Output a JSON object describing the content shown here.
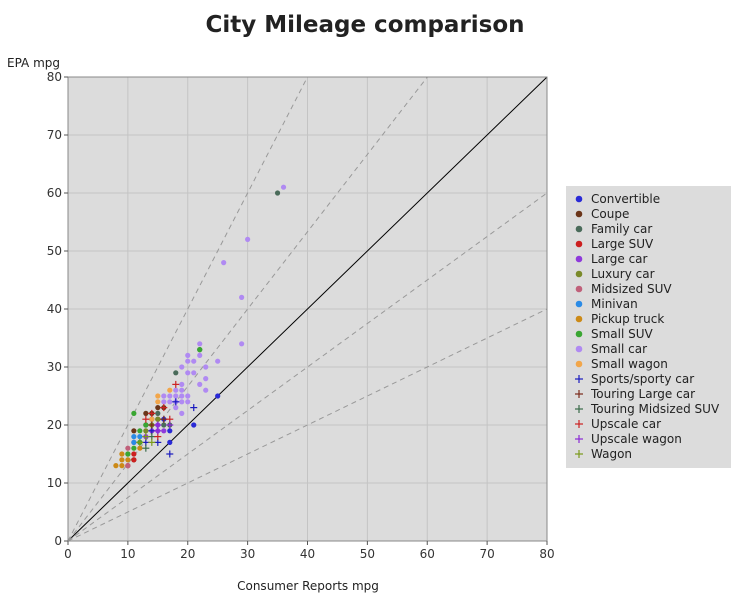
{
  "chart_data": {
    "type": "scatter",
    "title": "City Mileage comparison",
    "xlabel": "Consumer Reports mpg",
    "ylabel": "EPA mpg",
    "xlim": [
      0,
      80
    ],
    "ylim": [
      0,
      80
    ],
    "xticks": [
      0,
      10,
      20,
      30,
      40,
      50,
      60,
      70,
      80
    ],
    "yticks": [
      0,
      10,
      20,
      30,
      40,
      50,
      60,
      70,
      80
    ],
    "grid": true,
    "legend_position": "right",
    "colors": {
      "plot_background": "#dcdcdc",
      "legend_background": "#dcdcdc",
      "grid": "#c4c4c4",
      "identity_line": "#000000",
      "reference_lines": "#999999"
    },
    "reference_lines": [
      {
        "slope": 1,
        "style": "solid"
      },
      {
        "slope": 2,
        "style": "dashed"
      },
      {
        "slope": 1.333,
        "style": "dashed"
      },
      {
        "slope": 0.75,
        "style": "dashed"
      },
      {
        "slope": 0.5,
        "style": "dashed"
      }
    ],
    "series": [
      {
        "name": "Convertible",
        "marker": "circle",
        "color": "#2a2ad6",
        "points": [
          [
            25,
            25
          ],
          [
            21,
            20
          ],
          [
            17,
            17
          ],
          [
            17,
            19
          ],
          [
            16,
            21
          ]
        ]
      },
      {
        "name": "Coupe",
        "marker": "circle",
        "color": "#6b3519",
        "points": [
          [
            11,
            19
          ],
          [
            11,
            14
          ],
          [
            13,
            22
          ],
          [
            14,
            22
          ],
          [
            15,
            21
          ],
          [
            15,
            23
          ],
          [
            16,
            23
          ]
        ]
      },
      {
        "name": "Family car",
        "marker": "circle",
        "color": "#4a6b5a",
        "points": [
          [
            35,
            60
          ],
          [
            18,
            29
          ],
          [
            13,
            20
          ],
          [
            14,
            21
          ],
          [
            15,
            22
          ],
          [
            16,
            20
          ],
          [
            17,
            20
          ],
          [
            22,
            33
          ]
        ]
      },
      {
        "name": "Large SUV",
        "marker": "circle",
        "color": "#cc1f1f",
        "points": [
          [
            10,
            13
          ],
          [
            11,
            14
          ],
          [
            11,
            15
          ]
        ]
      },
      {
        "name": "Large car",
        "marker": "circle",
        "color": "#8e3adb",
        "points": [
          [
            13,
            18
          ],
          [
            14,
            19
          ],
          [
            15,
            19
          ],
          [
            15,
            20
          ],
          [
            16,
            19
          ]
        ]
      },
      {
        "name": "Luxury car",
        "marker": "circle",
        "color": "#7a8a2a",
        "points": [
          [
            13,
            19
          ],
          [
            14,
            20
          ],
          [
            15,
            21
          ]
        ]
      },
      {
        "name": "Midsized SUV",
        "marker": "circle",
        "color": "#c0607a",
        "points": [
          [
            10,
            16
          ],
          [
            10,
            13
          ],
          [
            11,
            17
          ],
          [
            12,
            17
          ]
        ]
      },
      {
        "name": "Minivan",
        "marker": "circle",
        "color": "#2b8be6",
        "points": [
          [
            11,
            17
          ],
          [
            11,
            18
          ],
          [
            12,
            18
          ]
        ]
      },
      {
        "name": "Pickup truck",
        "marker": "circle",
        "color": "#cc8a17",
        "points": [
          [
            8,
            13
          ],
          [
            9,
            13
          ],
          [
            9,
            14
          ],
          [
            9,
            15
          ],
          [
            10,
            14
          ],
          [
            10,
            15
          ],
          [
            12,
            16
          ]
        ]
      },
      {
        "name": "Small SUV",
        "marker": "circle",
        "color": "#3aa632",
        "points": [
          [
            11,
            22
          ],
          [
            11,
            16
          ],
          [
            12,
            17
          ],
          [
            12,
            19
          ],
          [
            13,
            20
          ],
          [
            22,
            33
          ],
          [
            10,
            15
          ]
        ]
      },
      {
        "name": "Small car",
        "marker": "circle",
        "color": "#b08af2",
        "points": [
          [
            36,
            61
          ],
          [
            30,
            52
          ],
          [
            26,
            48
          ],
          [
            29,
            42
          ],
          [
            29,
            34
          ],
          [
            22,
            34
          ],
          [
            22,
            32
          ],
          [
            20,
            32
          ],
          [
            20,
            31
          ],
          [
            19,
            30
          ],
          [
            21,
            31
          ],
          [
            23,
            30
          ],
          [
            25,
            31
          ],
          [
            20,
            29
          ],
          [
            21,
            29
          ],
          [
            23,
            28
          ],
          [
            19,
            27
          ],
          [
            18,
            26
          ],
          [
            19,
            26
          ],
          [
            22,
            27
          ],
          [
            23,
            26
          ],
          [
            16,
            25
          ],
          [
            17,
            25
          ],
          [
            18,
            25
          ],
          [
            19,
            25
          ],
          [
            20,
            25
          ],
          [
            16,
            24
          ],
          [
            17,
            24
          ],
          [
            18,
            24
          ],
          [
            19,
            24
          ],
          [
            20,
            24
          ],
          [
            18,
            23
          ],
          [
            19,
            22
          ]
        ]
      },
      {
        "name": "Small wagon",
        "marker": "circle",
        "color": "#f2a64a",
        "points": [
          [
            15,
            25
          ],
          [
            17,
            26
          ],
          [
            15,
            24
          ],
          [
            14,
            21
          ]
        ]
      },
      {
        "name": "Sports/sporty car",
        "marker": "plus",
        "color": "#1a1abf",
        "points": [
          [
            21,
            23
          ],
          [
            17,
            15
          ],
          [
            15,
            17
          ],
          [
            18,
            24
          ],
          [
            13,
            17
          ],
          [
            14,
            19
          ]
        ]
      },
      {
        "name": "Touring Large car",
        "marker": "plus",
        "color": "#7a2a1a",
        "points": [
          [
            16,
            21
          ],
          [
            14,
            20
          ]
        ]
      },
      {
        "name": "Touring Midsized SUV",
        "marker": "plus",
        "color": "#3a6b4a",
        "points": [
          [
            13,
            16
          ],
          [
            14,
            18
          ]
        ]
      },
      {
        "name": "Upscale car",
        "marker": "plus",
        "color": "#cc2222",
        "points": [
          [
            18,
            27
          ],
          [
            17,
            21
          ],
          [
            16,
            23
          ],
          [
            13,
            21
          ],
          [
            14,
            22
          ],
          [
            15,
            18
          ]
        ]
      },
      {
        "name": "Upscale wagon",
        "marker": "plus",
        "color": "#8a2ad6",
        "points": [
          [
            15,
            20
          ],
          [
            15,
            19
          ],
          [
            17,
            20
          ]
        ]
      },
      {
        "name": "Wagon",
        "marker": "plus",
        "color": "#7a9a1a",
        "points": [
          [
            13,
            18
          ],
          [
            14,
            17
          ],
          [
            12,
            17
          ]
        ]
      }
    ]
  }
}
